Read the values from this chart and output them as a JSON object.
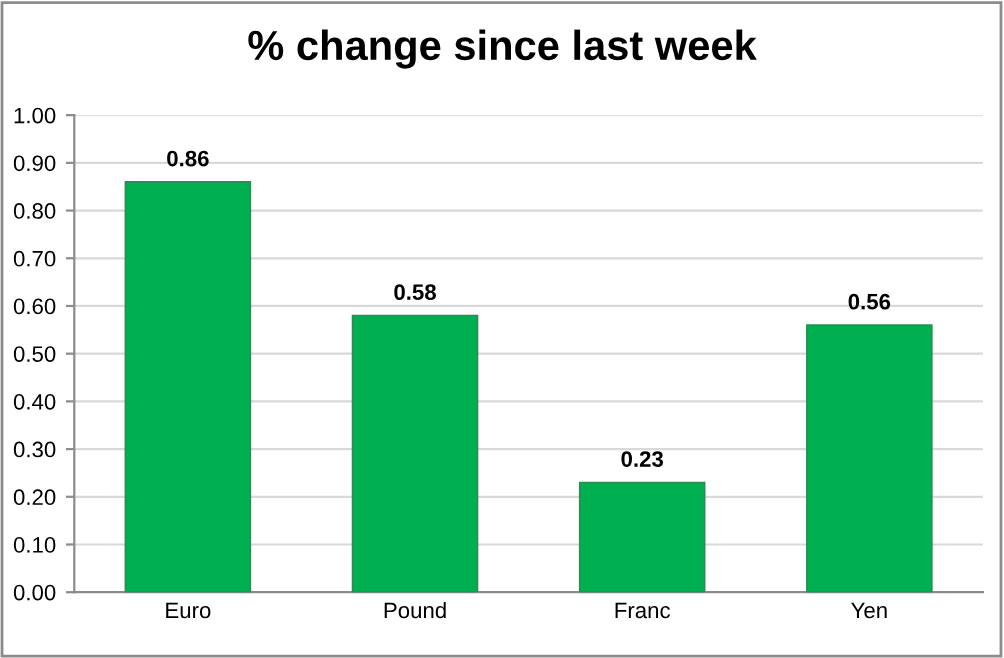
{
  "chart_data": {
    "type": "bar",
    "title": "% change since last week",
    "categories": [
      "Euro",
      "Pound",
      "Franc",
      "Yen"
    ],
    "values": [
      0.86,
      0.58,
      0.23,
      0.56
    ],
    "value_labels": [
      "0.86",
      "0.58",
      "0.23",
      "0.56"
    ],
    "color": "#00b050",
    "ylim": [
      0,
      1
    ],
    "yticks": [
      {
        "value": 0,
        "label": "0.00"
      },
      {
        "value": 0.1,
        "label": "0.10"
      },
      {
        "value": 0.2,
        "label": "0.20"
      },
      {
        "value": 0.3,
        "label": "0.30"
      },
      {
        "value": 0.4,
        "label": "0.40"
      },
      {
        "value": 0.5,
        "label": "0.50"
      },
      {
        "value": 0.6,
        "label": "0.60"
      },
      {
        "value": 0.7,
        "label": "0.70"
      },
      {
        "value": 0.8,
        "label": "0.80"
      },
      {
        "value": 0.9,
        "label": "0.90"
      },
      {
        "value": 1,
        "label": "1.00"
      }
    ],
    "grid": "y",
    "legend": false
  }
}
